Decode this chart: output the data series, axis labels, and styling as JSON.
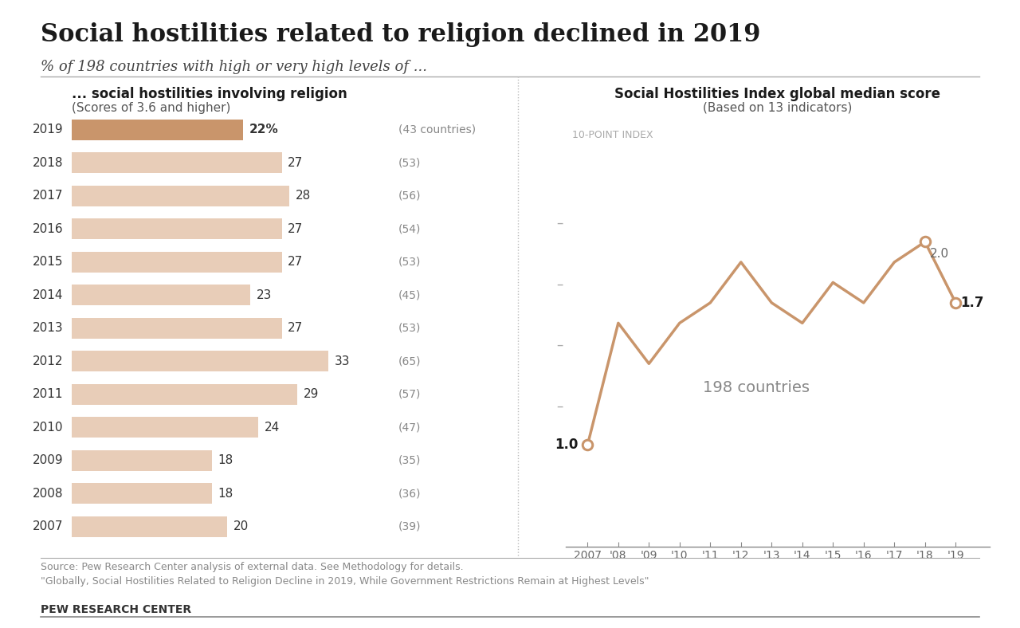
{
  "title": "Social hostilities related to religion declined in 2019",
  "subtitle": "% of 198 countries with high or very high levels of ...",
  "bar_title": "... social hostilities involving religion",
  "bar_subtitle": "(Scores of 3.6 and higher)",
  "line_title": "Social Hostilities Index global median score",
  "line_subtitle": "(Based on 13 indicators)",
  "line_ylabel": "10-POINT INDEX",
  "years_bar": [
    2019,
    2018,
    2017,
    2016,
    2015,
    2014,
    2013,
    2012,
    2011,
    2010,
    2009,
    2008,
    2007
  ],
  "values_bar": [
    22,
    27,
    28,
    27,
    27,
    23,
    27,
    33,
    29,
    24,
    18,
    18,
    20
  ],
  "countries_bar": [
    "43 countries",
    "53",
    "56",
    "54",
    "53",
    "45",
    "53",
    "65",
    "57",
    "47",
    "35",
    "36",
    "39"
  ],
  "bar_color_highlight": "#c9956b",
  "bar_color_normal": "#e8cdb8",
  "line_years": [
    2007,
    2008,
    2009,
    2010,
    2011,
    2012,
    2013,
    2014,
    2015,
    2016,
    2017,
    2018,
    2019
  ],
  "line_values": [
    1.0,
    1.6,
    1.4,
    1.6,
    1.7,
    1.9,
    1.7,
    1.6,
    1.8,
    1.7,
    1.9,
    2.0,
    1.7
  ],
  "line_color": "#c9956b",
  "source_line1": "Source: Pew Research Center analysis of external data. See Methodology for details.",
  "source_line2": "\"Globally, Social Hostilities Related to Religion Decline in 2019, While Government Restrictions Remain at Highest Levels\"",
  "pew_label": "PEW RESEARCH CENTER",
  "background_color": "#ffffff",
  "xtick_labels": [
    "2007",
    "'08",
    "'09",
    "'10",
    "'11",
    "'12",
    "'13",
    "'14",
    "'15",
    "'16",
    "'17",
    "'18",
    "'19"
  ],
  "ytick_dashes": [
    "–",
    "–",
    "–",
    "–"
  ],
  "ytick_vals": [
    1.2,
    1.5,
    1.8,
    2.1
  ]
}
